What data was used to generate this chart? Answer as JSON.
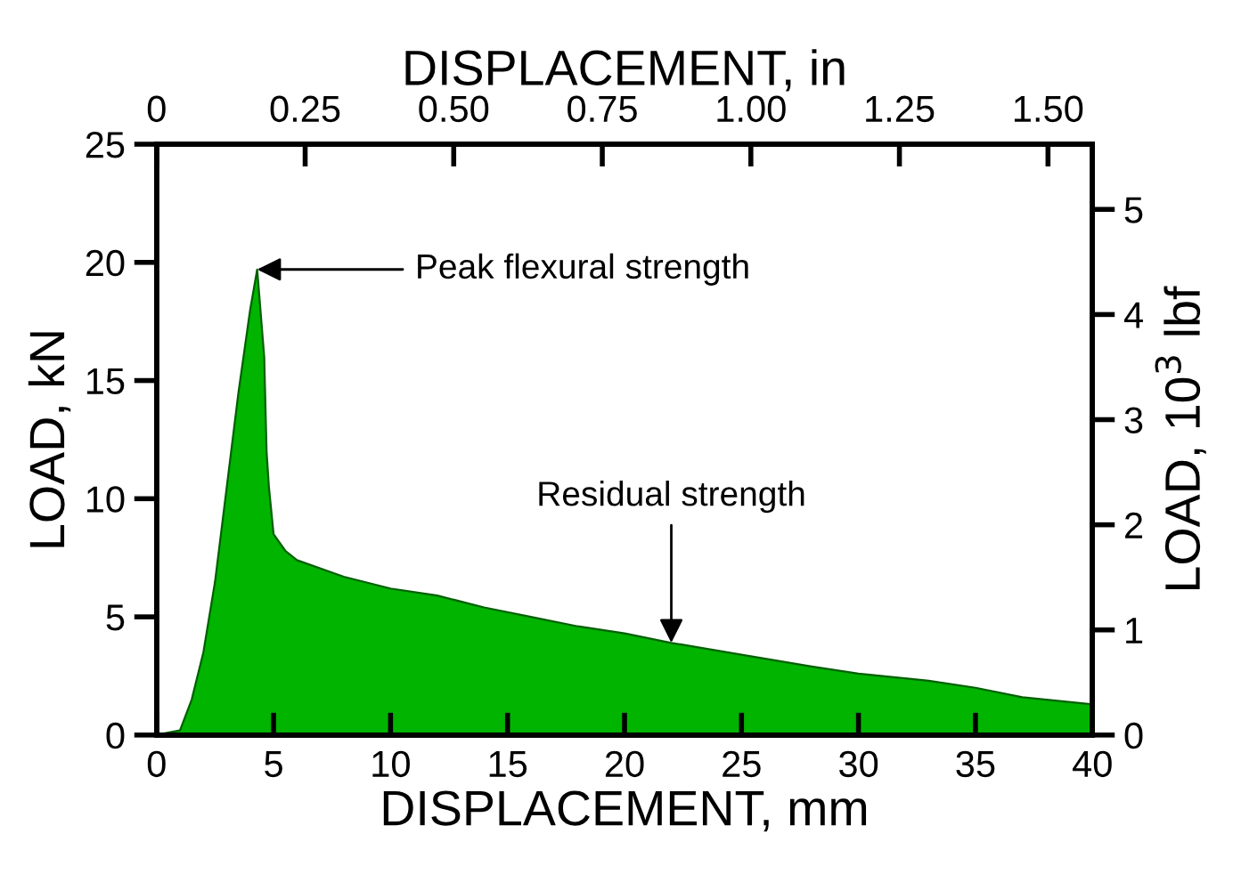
{
  "chart_data": {
    "type": "area",
    "xlabel": "DISPLACEMENT, mm",
    "x2label": "DISPLACEMENT, in",
    "ylabel": "LOAD, kN",
    "y2label": "LOAD, 10$^{3}$ lbf",
    "series": [
      {
        "color": "#00b400",
        "x": [
          0,
          0.5,
          1,
          1.5,
          2,
          2.5,
          3,
          3.5,
          4,
          4.3,
          4.6,
          4.7,
          4.8,
          5,
          5.5,
          6,
          8,
          10,
          12,
          14,
          16,
          18,
          20,
          22,
          25,
          28,
          30,
          33,
          35,
          37,
          40
        ],
        "values": [
          0,
          0.1,
          0.2,
          1.5,
          3.5,
          6.5,
          10.5,
          14.5,
          18,
          19.7,
          16,
          12,
          10.5,
          8.5,
          7.8,
          7.4,
          6.7,
          6.2,
          5.9,
          5.4,
          5.0,
          4.6,
          4.3,
          3.9,
          3.4,
          2.9,
          2.6,
          2.3,
          2.0,
          1.6,
          1.3
        ]
      }
    ],
    "xlim": [
      0,
      40
    ],
    "xticks": [
      0,
      5,
      10,
      15,
      20,
      25,
      30,
      35,
      40
    ],
    "ylim": [
      0,
      25
    ],
    "yticks": [
      0,
      5,
      10,
      15,
      20,
      25
    ],
    "x2lim": [
      0,
      1.5748
    ],
    "x2ticks": [
      0,
      {
        "value": 0.25,
        "label": "0.25"
      },
      {
        "value": 0.5,
        "label": "0.50"
      },
      {
        "value": 0.75,
        "label": "0.75"
      },
      {
        "value": 1.0,
        "label": "1.00"
      },
      {
        "value": 1.25,
        "label": "1.25"
      },
      {
        "value": 1.5,
        "label": "1.50"
      }
    ],
    "y2lim": [
      0,
      5.62
    ],
    "y2ticks": [
      0,
      1,
      2,
      3,
      4,
      5
    ],
    "annotations": [
      {
        "text": "Peak flexural strength",
        "x": 4.3,
        "y": 19.7
      },
      {
        "text": "Residual strength",
        "x": 22,
        "y": 3.9
      }
    ],
    "grid": false,
    "legend": false
  }
}
